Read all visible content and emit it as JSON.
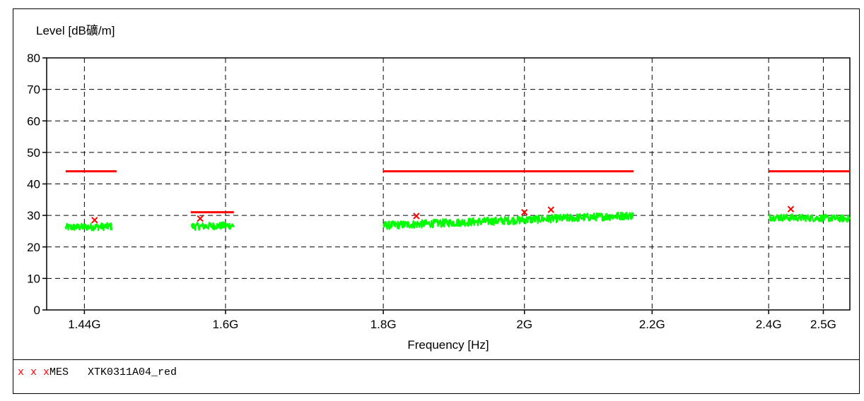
{
  "chart_data": {
    "type": "line",
    "ylabel": "Level [dB礦/m]",
    "xlabel": "Frequency [Hz]",
    "x_scale": "log",
    "xlim": [
      1400000000.0,
      2550000000.0
    ],
    "ylim": [
      0,
      80
    ],
    "yticks": [
      0,
      10,
      20,
      30,
      40,
      50,
      60,
      70,
      80
    ],
    "xticks": [
      {
        "value": 1440000000.0,
        "label": "1.44G"
      },
      {
        "value": 1600000000.0,
        "label": "1.6G"
      },
      {
        "value": 1800000000.0,
        "label": "1.8G"
      },
      {
        "value": 2000000000.0,
        "label": "2G"
      },
      {
        "value": 2200000000.0,
        "label": "2.2G"
      },
      {
        "value": 2400000000.0,
        "label": "2.4G"
      },
      {
        "value": 2500000000.0,
        "label": "2.5G"
      }
    ],
    "grid": true,
    "series": [
      {
        "name": "",
        "role": "limit",
        "color": "#ff0000",
        "segments": [
          {
            "x": [
              1420000000.0,
              1475000000.0
            ],
            "y": [
              44,
              44
            ]
          },
          {
            "x": [
              1559000000.0,
              1610000000.0
            ],
            "y": [
              31,
              31
            ]
          },
          {
            "x": [
              1800000000.0,
              2170000000.0
            ],
            "y": [
              44,
              44
            ]
          },
          {
            "x": [
              2400000000.0,
              2550000000.0
            ],
            "y": [
              44,
              44
            ]
          }
        ]
      },
      {
        "name": "",
        "role": "trace",
        "color": "#00ff00",
        "segments": [
          {
            "x": [
              1420000000.0,
              1470000000.0
            ],
            "y": [
              26.2,
              26.5
            ],
            "spread": 2.4
          },
          {
            "x": [
              1560000000.0,
              1610000000.0
            ],
            "y": [
              26.5,
              26.8
            ],
            "spread": 2.4
          },
          {
            "x": [
              1800000000.0,
              2170000000.0
            ],
            "y": [
              26.8,
              30.0
            ],
            "spread": 2.6
          },
          {
            "x": [
              2400000000.0,
              2550000000.0
            ],
            "y": [
              29.4,
              29.0
            ],
            "spread": 2.3
          }
        ]
      },
      {
        "name": "MES XTK0311A04_red",
        "role": "markers",
        "marker": "x",
        "color": "#ff0000",
        "points": [
          {
            "x": 1451000000.0,
            "y": 28.5
          },
          {
            "x": 1570000000.0,
            "y": 29.0
          },
          {
            "x": 1845000000.0,
            "y": 29.8
          },
          {
            "x": 2000000000.0,
            "y": 31.0
          },
          {
            "x": 2040000000.0,
            "y": 31.8
          },
          {
            "x": 2440000000.0,
            "y": 32.0
          }
        ]
      }
    ]
  },
  "legend": {
    "marker_text": "x x x",
    "label_text": "MES   XTK0311A04_red"
  }
}
